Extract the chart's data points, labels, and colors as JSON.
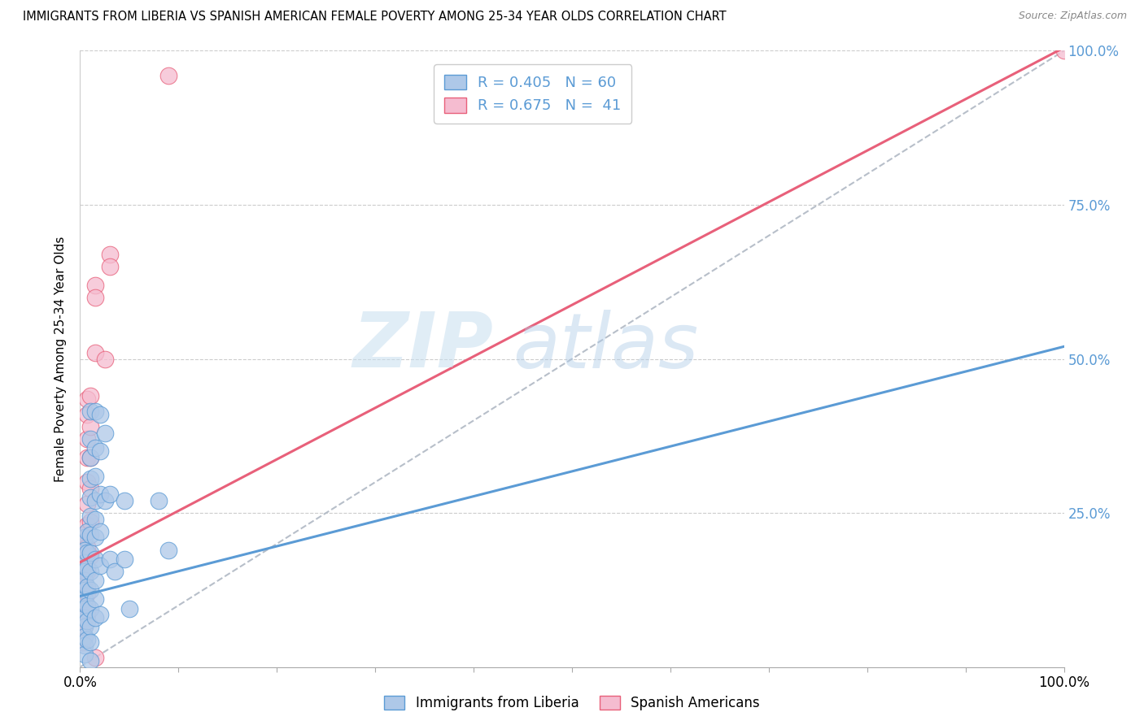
{
  "title": "IMMIGRANTS FROM LIBERIA VS SPANISH AMERICAN FEMALE POVERTY AMONG 25-34 YEAR OLDS CORRELATION CHART",
  "source": "Source: ZipAtlas.com",
  "ylabel": "Female Poverty Among 25-34 Year Olds",
  "xlim": [
    0,
    1
  ],
  "ylim": [
    0,
    1
  ],
  "xticks": [
    0,
    0.1,
    0.2,
    0.3,
    0.4,
    0.5,
    0.6,
    0.7,
    0.8,
    0.9,
    1.0
  ],
  "yticks": [
    0,
    0.25,
    0.5,
    0.75,
    1.0
  ],
  "xticklabels_show": [
    "0.0%",
    "100.0%"
  ],
  "legend_blue_label": "Immigrants from Liberia",
  "legend_pink_label": "Spanish Americans",
  "R_blue": "0.405",
  "N_blue": "60",
  "R_pink": "0.675",
  "N_pink": "41",
  "blue_color": "#aec8e8",
  "pink_color": "#f5bcd0",
  "blue_line_color": "#5b9bd5",
  "pink_line_color": "#e8607a",
  "diagonal_color": "#b0b8c4",
  "watermark_zip": "ZIP",
  "watermark_atlas": "atlas",
  "blue_scatter": [
    [
      0.005,
      0.21
    ],
    [
      0.005,
      0.19
    ],
    [
      0.005,
      0.17
    ],
    [
      0.005,
      0.155
    ],
    [
      0.005,
      0.14
    ],
    [
      0.005,
      0.125
    ],
    [
      0.005,
      0.11
    ],
    [
      0.005,
      0.095
    ],
    [
      0.005,
      0.08
    ],
    [
      0.005,
      0.065
    ],
    [
      0.005,
      0.05
    ],
    [
      0.005,
      0.035
    ],
    [
      0.005,
      0.02
    ],
    [
      0.007,
      0.22
    ],
    [
      0.007,
      0.185
    ],
    [
      0.007,
      0.16
    ],
    [
      0.007,
      0.13
    ],
    [
      0.007,
      0.1
    ],
    [
      0.007,
      0.075
    ],
    [
      0.007,
      0.045
    ],
    [
      0.01,
      0.415
    ],
    [
      0.01,
      0.37
    ],
    [
      0.01,
      0.34
    ],
    [
      0.01,
      0.305
    ],
    [
      0.01,
      0.275
    ],
    [
      0.01,
      0.245
    ],
    [
      0.01,
      0.215
    ],
    [
      0.01,
      0.185
    ],
    [
      0.01,
      0.155
    ],
    [
      0.01,
      0.125
    ],
    [
      0.01,
      0.095
    ],
    [
      0.01,
      0.065
    ],
    [
      0.01,
      0.04
    ],
    [
      0.01,
      0.01
    ],
    [
      0.015,
      0.415
    ],
    [
      0.015,
      0.355
    ],
    [
      0.015,
      0.31
    ],
    [
      0.015,
      0.27
    ],
    [
      0.015,
      0.24
    ],
    [
      0.015,
      0.21
    ],
    [
      0.015,
      0.175
    ],
    [
      0.015,
      0.14
    ],
    [
      0.015,
      0.11
    ],
    [
      0.015,
      0.08
    ],
    [
      0.02,
      0.41
    ],
    [
      0.02,
      0.35
    ],
    [
      0.02,
      0.28
    ],
    [
      0.02,
      0.22
    ],
    [
      0.02,
      0.165
    ],
    [
      0.02,
      0.085
    ],
    [
      0.025,
      0.38
    ],
    [
      0.025,
      0.27
    ],
    [
      0.03,
      0.28
    ],
    [
      0.03,
      0.175
    ],
    [
      0.035,
      0.155
    ],
    [
      0.045,
      0.27
    ],
    [
      0.045,
      0.175
    ],
    [
      0.05,
      0.095
    ],
    [
      0.08,
      0.27
    ],
    [
      0.09,
      0.19
    ]
  ],
  "pink_scatter": [
    [
      0.002,
      0.215
    ],
    [
      0.002,
      0.19
    ],
    [
      0.002,
      0.165
    ],
    [
      0.002,
      0.14
    ],
    [
      0.002,
      0.115
    ],
    [
      0.002,
      0.09
    ],
    [
      0.002,
      0.065
    ],
    [
      0.002,
      0.04
    ],
    [
      0.004,
      0.215
    ],
    [
      0.004,
      0.19
    ],
    [
      0.004,
      0.165
    ],
    [
      0.004,
      0.14
    ],
    [
      0.004,
      0.115
    ],
    [
      0.004,
      0.09
    ],
    [
      0.004,
      0.065
    ],
    [
      0.007,
      0.435
    ],
    [
      0.007,
      0.41
    ],
    [
      0.007,
      0.37
    ],
    [
      0.007,
      0.34
    ],
    [
      0.007,
      0.3
    ],
    [
      0.007,
      0.265
    ],
    [
      0.007,
      0.23
    ],
    [
      0.007,
      0.195
    ],
    [
      0.007,
      0.155
    ],
    [
      0.007,
      0.12
    ],
    [
      0.007,
      0.085
    ],
    [
      0.01,
      0.44
    ],
    [
      0.01,
      0.39
    ],
    [
      0.01,
      0.34
    ],
    [
      0.01,
      0.29
    ],
    [
      0.01,
      0.235
    ],
    [
      0.01,
      0.18
    ],
    [
      0.015,
      0.62
    ],
    [
      0.015,
      0.6
    ],
    [
      0.015,
      0.51
    ],
    [
      0.025,
      0.5
    ],
    [
      0.03,
      0.67
    ],
    [
      0.03,
      0.65
    ],
    [
      0.09,
      0.96
    ],
    [
      0.015,
      0.015
    ],
    [
      1.0,
      1.0
    ]
  ],
  "blue_line": {
    "x0": 0.0,
    "y0": 0.115,
    "x1": 1.0,
    "y1": 0.52
  },
  "pink_line": {
    "x0": 0.0,
    "y0": 0.17,
    "x1": 1.0,
    "y1": 1.005
  },
  "diag_line": {
    "x0": 0.0,
    "y0": 0.0,
    "x1": 1.0,
    "y1": 1.0
  }
}
